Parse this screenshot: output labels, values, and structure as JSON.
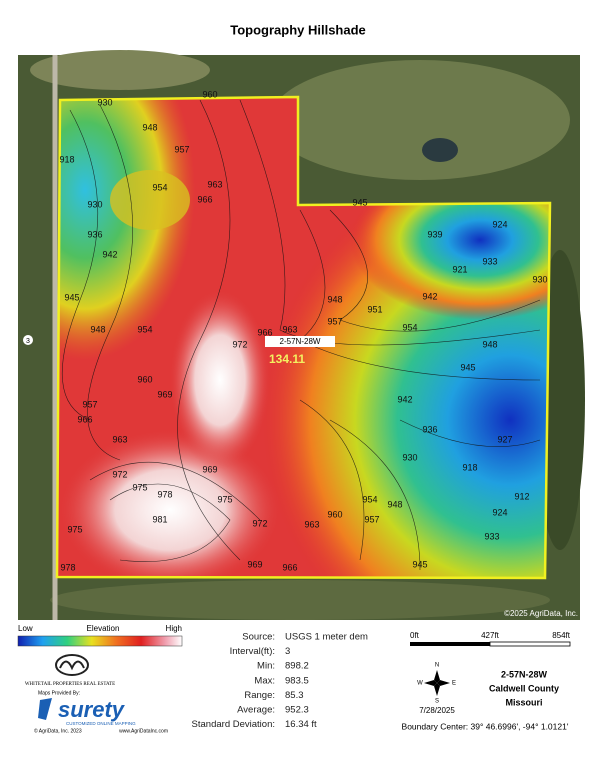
{
  "title": "Topography Hillshade",
  "map": {
    "parcel_label": "2-57N-28W",
    "acres": 134.11,
    "road": "3",
    "copyright": "©2025 AgriData, Inc.",
    "contour_labels": [
      930,
      948,
      957,
      960,
      954,
      963,
      966,
      918,
      930,
      936,
      942,
      945,
      948,
      954,
      960,
      969,
      972,
      966,
      963,
      957,
      951,
      948,
      945,
      939,
      933,
      930,
      924,
      921,
      942,
      954,
      948,
      945,
      942,
      936,
      930,
      927,
      918,
      912,
      924,
      933,
      972,
      975,
      978,
      981,
      975,
      972,
      969,
      966,
      963,
      960,
      957,
      954,
      948,
      945,
      969,
      966,
      963,
      957,
      975,
      978
    ]
  },
  "legend": {
    "low": "Low",
    "title": "Elevation",
    "high": "High"
  },
  "stats": {
    "rows": [
      [
        "Source:",
        "USGS 1 meter dem"
      ],
      [
        "Interval(ft):",
        3
      ],
      [
        "Min:",
        898.2
      ],
      [
        "Max:",
        983.5
      ],
      [
        "Range:",
        85.3
      ],
      [
        "Average:",
        952.3
      ],
      [
        "Standard Deviation:",
        "16.34 ft"
      ]
    ]
  },
  "scale": {
    "ticks": [
      "0ft",
      "427ft",
      "854ft"
    ]
  },
  "compass": {
    "n": "N",
    "s": "S",
    "e": "E",
    "w": "W"
  },
  "date": "7/28/2025",
  "location": {
    "section": "2-57N-28W",
    "county": "Caldwell County",
    "state": "Missouri"
  },
  "boundary_center": "Boundary Center: 39° 46.6996', -94° 1.0121'",
  "logos": {
    "company": "WHITETAIL PROPERTIES REAL ESTATE",
    "provided": "Maps Provided By:",
    "brand": "surety",
    "tagline": "CUSTOMIZED ONLINE MAPPING",
    "copyright": "© AgriData, Inc. 2023",
    "website": "www.AgriDataInc.com"
  }
}
